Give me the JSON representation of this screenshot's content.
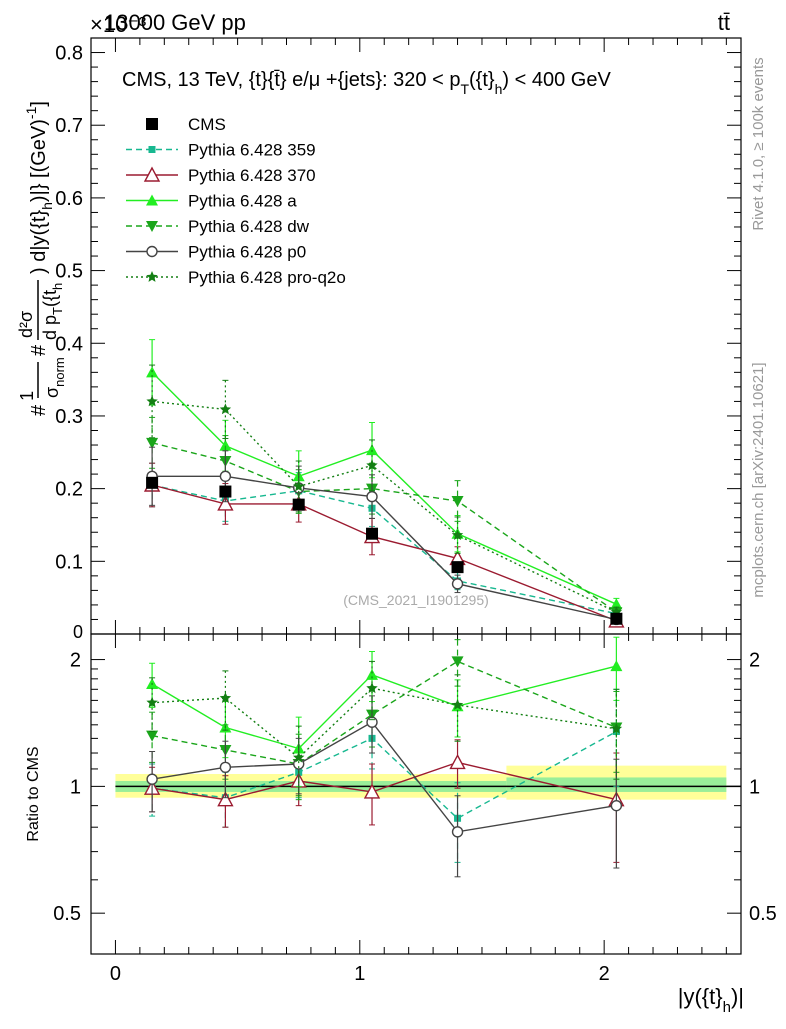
{
  "header": {
    "energy_label": "13000 GeV pp",
    "process_label": "tt̄",
    "exponent_label": "×10⁻³"
  },
  "side_labels": {
    "rivet": "Rivet 4.1.0, ≥ 100k events",
    "mcplots": "mcplots.cern.ch [arXiv:2401.10621]"
  },
  "chart_data": [
    {
      "type": "line",
      "panel": "main",
      "title": "CMS, 13 TeV, {t}{t̄} e/μ +{jets}: 320 <  p_T({t}_h) < 400 GeV",
      "title_parts": {
        "main": "CMS, 13 TeV, {t}{t̄} e/μ +{jets}: 320 <  p",
        "sub1": "T",
        "mid": "({t}",
        "sub2": "h",
        "end": ") < 400 GeV"
      },
      "ylabel": "#1/σ_norm # d²σ / d p_T({t}_h) d|y({t}_h)| [(GeV)⁻¹]",
      "ylabel_parts": {
        "hash1": "#",
        "one": "1",
        "sigma": "σ",
        "norm": "norm",
        "hash2": "#",
        "num": "d²σ",
        "den": "d p",
        "den_sub": "T",
        "den_end": "({t",
        "den_h": "h",
        "tail": ") d|y({t}",
        "tail_h": "h",
        "tail_end": ")|} [(GeV)",
        "unit_exp": "-1",
        "close": "]"
      },
      "watermark": "(CMS_2021_I1901295)",
      "exponent": "×10⁻³",
      "x_range": [
        -0.1,
        2.56
      ],
      "ylim": [
        0,
        0.82
      ],
      "y_ticks": [
        0.1,
        0.2,
        0.3,
        0.4,
        0.5,
        0.6,
        0.7,
        0.8
      ],
      "y_tick_labels": [
        "0.1",
        "0.2",
        "0.3",
        "0.4",
        "0.5",
        "0.6",
        "0.7",
        "0.8"
      ],
      "y_zero_label": "0",
      "x": [
        0.15,
        0.45,
        0.75,
        1.05,
        1.4,
        2.05
      ],
      "series": [
        {
          "name": "CMS",
          "color": "#000000",
          "style": "none",
          "marker": "square-filled",
          "values": [
            0.208,
            0.196,
            0.178,
            0.138,
            0.092,
            0.021
          ],
          "errors": [
            0.005,
            0.004,
            0.004,
            0.004,
            0.003,
            0.002
          ]
        },
        {
          "name": "Pythia 6.428 359",
          "color": "#17b890",
          "style": "dashed",
          "marker": "square-filled-small",
          "values": [
            0.205,
            0.183,
            0.197,
            0.173,
            0.073,
            0.028
          ],
          "errors": [
            0.03,
            0.028,
            0.025,
            0.025,
            0.012,
            0.005
          ]
        },
        {
          "name": "Pythia 6.428 370",
          "color": "#9b1b30",
          "style": "solid",
          "marker": "triangle-open",
          "values": [
            0.205,
            0.179,
            0.179,
            0.134,
            0.104,
            0.018
          ],
          "errors": [
            0.03,
            0.028,
            0.025,
            0.025,
            0.016,
            0.004
          ]
        },
        {
          "name": "Pythia 6.428 a",
          "color": "#22ee22",
          "style": "solid",
          "marker": "triangle-filled",
          "values": [
            0.36,
            0.259,
            0.217,
            0.253,
            0.138,
            0.041
          ],
          "errors": [
            0.045,
            0.035,
            0.035,
            0.038,
            0.025,
            0.008
          ]
        },
        {
          "name": "Pythia 6.428 dw",
          "color": "#1aa51a",
          "style": "dashed",
          "marker": "triangle-down-filled",
          "values": [
            0.263,
            0.238,
            0.196,
            0.2,
            0.183,
            0.03
          ],
          "errors": [
            0.035,
            0.035,
            0.03,
            0.035,
            0.028,
            0.006
          ]
        },
        {
          "name": "Pythia 6.428 p0",
          "color": "#444444",
          "style": "solid",
          "marker": "circle-open",
          "values": [
            0.217,
            0.217,
            0.201,
            0.189,
            0.069,
            0.02
          ],
          "errors": [
            0.04,
            0.035,
            0.03,
            0.03,
            0.012,
            0.005
          ]
        },
        {
          "name": "Pythia 6.428 pro-q2o",
          "color": "#137f13",
          "style": "dotted",
          "marker": "star-filled",
          "values": [
            0.32,
            0.309,
            0.203,
            0.232,
            0.136,
            0.03
          ],
          "errors": [
            0.05,
            0.04,
            0.035,
            0.035,
            0.025,
            0.007
          ]
        }
      ]
    },
    {
      "type": "line",
      "panel": "ratio",
      "ylabel": "Ratio to CMS",
      "xlabel": "|y({t}_h)|",
      "xlabel_parts": {
        "main": "|y({t}",
        "sub": "h",
        "end": ")|"
      },
      "x_range": [
        -0.1,
        2.56
      ],
      "ylim": [
        0.4,
        2.3
      ],
      "y_scale": "log",
      "y_ticks": [
        0.5,
        1,
        2
      ],
      "y_tick_labels": [
        "0.5",
        "1",
        "2"
      ],
      "x_ticks": [
        0,
        1,
        2
      ],
      "x_tick_labels": [
        "0",
        "1",
        "2"
      ],
      "reference_bands": [
        {
          "x_range": [
            0.0,
            1.6
          ],
          "outer": [
            0.94,
            1.07
          ],
          "inner": [
            0.97,
            1.03
          ]
        },
        {
          "x_range": [
            1.6,
            2.5
          ],
          "outer": [
            0.93,
            1.12
          ],
          "inner": [
            0.97,
            1.05
          ]
        }
      ],
      "x": [
        0.15,
        0.45,
        0.75,
        1.05,
        1.4,
        2.05
      ],
      "series": [
        {
          "name": "Pythia 6.428 359",
          "values": [
            0.99,
            0.94,
            1.08,
            1.3,
            0.84,
            1.35
          ],
          "errors": [
            0.14,
            0.14,
            0.14,
            0.2,
            0.18,
            0.35
          ]
        },
        {
          "name": "Pythia 6.428 370",
          "values": [
            0.99,
            0.93,
            1.03,
            0.97,
            1.14,
            0.93
          ],
          "errors": [
            0.12,
            0.13,
            0.13,
            0.16,
            0.15,
            0.27
          ]
        },
        {
          "name": "Pythia 6.428 a",
          "values": [
            1.75,
            1.38,
            1.23,
            1.84,
            1.55,
            1.93
          ],
          "errors": [
            0.21,
            0.21,
            0.23,
            0.25,
            0.24,
            0.33
          ]
        },
        {
          "name": "Pythia 6.428 dw",
          "values": [
            1.32,
            1.22,
            1.13,
            1.48,
            1.98,
            1.38
          ],
          "errors": [
            0.18,
            0.18,
            0.2,
            0.24,
            0.25,
            0.3
          ]
        },
        {
          "name": "Pythia 6.428 p0",
          "values": [
            1.04,
            1.11,
            1.13,
            1.42,
            0.78,
            0.9
          ],
          "errors": [
            0.17,
            0.17,
            0.17,
            0.22,
            0.17,
            0.26
          ]
        },
        {
          "name": "Pythia 6.428 pro-q2o",
          "values": [
            1.58,
            1.62,
            1.17,
            1.71,
            1.56,
            1.37
          ],
          "errors": [
            0.23,
            0.26,
            0.22,
            0.27,
            0.28,
            0.33
          ]
        }
      ]
    }
  ]
}
